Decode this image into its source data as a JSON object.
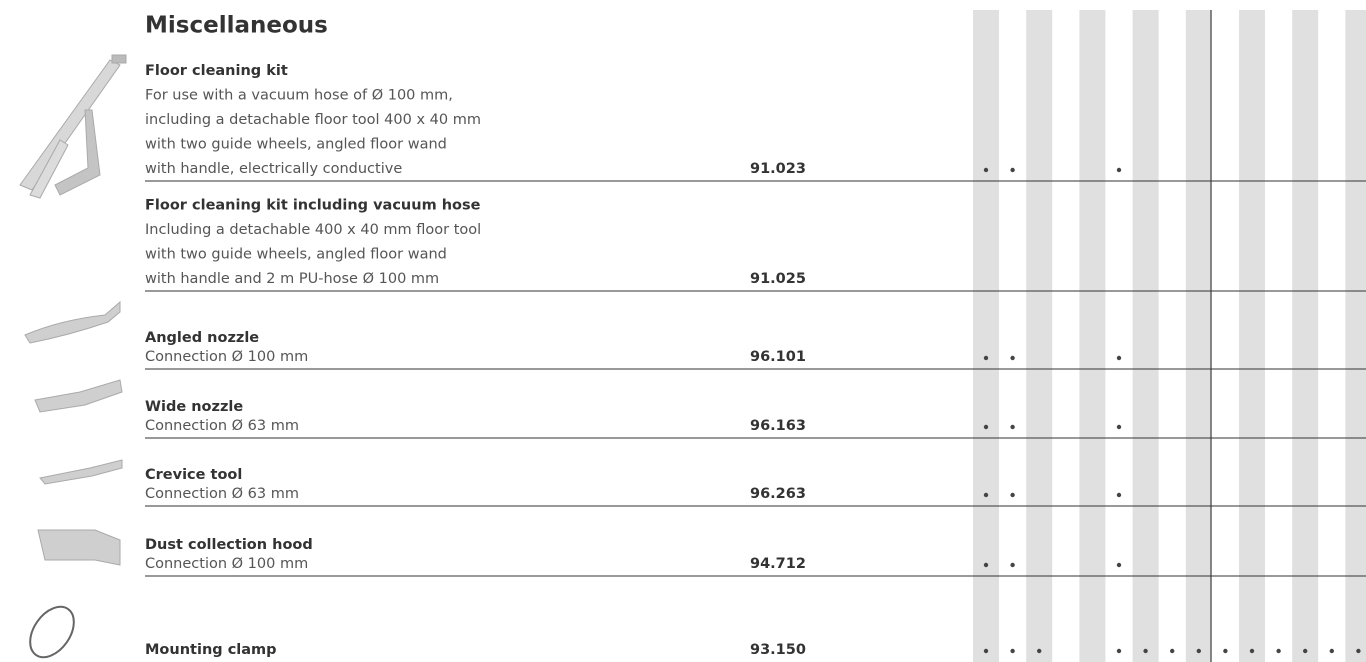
{
  "title": "Miscellaneous",
  "rows": [
    {
      "name": "Floor cleaning kit",
      "description": [
        "For use with a vacuum hose of Ø 100 mm,",
        "including a detachable floor tool 400 x 40 mm",
        "with two guide wheels, angled floor wand",
        "with handle, electrically conductive"
      ],
      "code": "91.023",
      "dots": [
        0,
        1,
        5
      ]
    },
    {
      "name": "Floor cleaning kit including vacuum hose",
      "description": [
        "Including a detachable 400 x 40 mm floor tool",
        "with two guide wheels, angled floor wand",
        "with handle and 2 m PU-hose Ø 100 mm"
      ],
      "code": "91.025",
      "dots": []
    },
    {
      "name": "Angled nozzle",
      "description": [
        "Connection Ø 100 mm"
      ],
      "code": "96.101",
      "dots": [
        0,
        1,
        5
      ]
    },
    {
      "name": "Wide nozzle",
      "description": [
        "Connection Ø 63 mm"
      ],
      "code": "96.163",
      "dots": [
        0,
        1,
        5
      ]
    },
    {
      "name": "Crevice tool",
      "description": [
        "Connection Ø 63 mm"
      ],
      "code": "96.263",
      "dots": [
        0,
        1,
        5
      ]
    },
    {
      "name": "Dust collection hood",
      "description": [
        "Connection Ø 100 mm"
      ],
      "code": "94.712",
      "dots": [
        0,
        1,
        5
      ]
    },
    {
      "name": "Mounting clamp",
      "description": [],
      "code": "93.150",
      "dots": [
        0,
        1,
        2,
        5,
        6,
        7,
        8,
        9,
        10,
        11,
        12,
        13,
        14
      ]
    }
  ]
}
